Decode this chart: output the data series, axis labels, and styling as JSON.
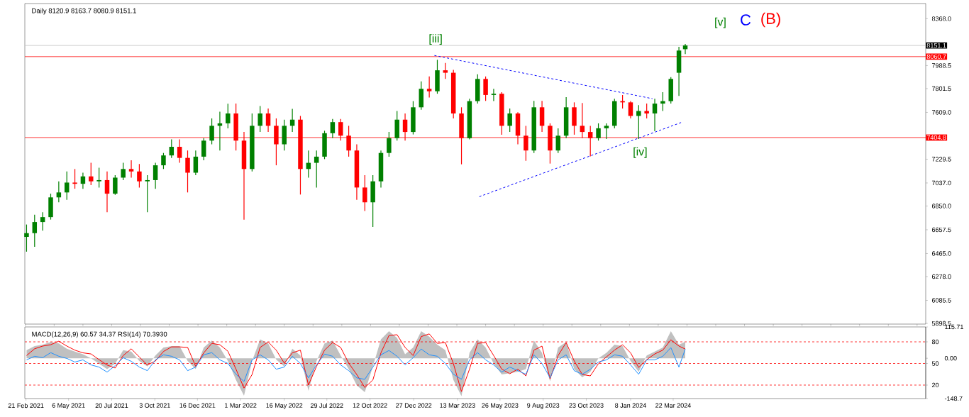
{
  "chart_data": [
    {
      "type": "candlestick",
      "title": "Daily  8120.9 8163.7 8080.9 8151.1",
      "x": [
        "2021-02-22",
        "2021-03-08",
        "2021-03-22",
        "2021-04-05",
        "2021-04-19",
        "2021-05-03",
        "2021-05-17",
        "2021-05-31",
        "2021-06-14",
        "2021-06-28",
        "2021-07-12",
        "2021-07-26",
        "2021-08-09",
        "2021-08-23",
        "2021-09-06",
        "2021-09-20",
        "2021-10-04",
        "2021-10-18",
        "2021-11-01",
        "2021-11-15",
        "2021-11-29",
        "2021-12-13",
        "2021-12-27",
        "2022-01-10",
        "2022-01-24",
        "2022-02-07",
        "2022-02-21",
        "2022-03-07",
        "2022-03-21",
        "2022-04-04",
        "2022-04-18",
        "2022-05-02",
        "2022-05-16",
        "2022-05-30",
        "2022-06-13",
        "2022-06-27",
        "2022-07-11",
        "2022-07-25",
        "2022-08-08",
        "2022-08-22",
        "2022-09-05",
        "2022-09-19",
        "2022-10-03",
        "2022-10-17",
        "2022-10-31",
        "2022-11-14",
        "2022-11-28",
        "2022-12-12",
        "2022-12-26",
        "2023-01-09",
        "2023-01-23",
        "2023-02-06",
        "2023-02-20",
        "2023-03-06",
        "2023-03-20",
        "2023-04-03",
        "2023-04-17",
        "2023-05-01",
        "2023-05-15",
        "2023-05-29",
        "2023-06-12",
        "2023-06-26",
        "2023-07-10",
        "2023-07-24",
        "2023-08-07",
        "2023-08-21",
        "2023-09-04",
        "2023-09-18",
        "2023-10-02",
        "2023-10-16",
        "2023-10-30",
        "2023-11-13",
        "2023-11-27",
        "2023-12-11",
        "2023-12-25",
        "2024-01-08",
        "2024-01-22",
        "2024-02-05",
        "2024-02-19",
        "2024-03-04",
        "2024-03-18",
        "2024-04-01",
        "2024-04-12"
      ],
      "ohlc": [
        [
          6600,
          6700,
          6480,
          6630
        ],
        [
          6630,
          6780,
          6520,
          6720
        ],
        [
          6720,
          6800,
          6650,
          6760
        ],
        [
          6760,
          6950,
          6740,
          6920
        ],
        [
          6920,
          7050,
          6880,
          6960
        ],
        [
          6960,
          7130,
          6900,
          7040
        ],
        [
          7040,
          7150,
          6990,
          7030
        ],
        [
          7030,
          7120,
          6990,
          7090
        ],
        [
          7090,
          7200,
          7020,
          7050
        ],
        [
          7050,
          7160,
          7000,
          7060
        ],
        [
          7060,
          7130,
          6800,
          6950
        ],
        [
          6950,
          7100,
          6940,
          7080
        ],
        [
          7080,
          7200,
          7060,
          7150
        ],
        [
          7150,
          7220,
          7080,
          7130
        ],
        [
          7130,
          7190,
          7000,
          7050
        ],
        [
          7050,
          7100,
          6800,
          7060
        ],
        [
          7060,
          7200,
          6990,
          7180
        ],
        [
          7180,
          7280,
          7150,
          7260
        ],
        [
          7260,
          7390,
          7240,
          7330
        ],
        [
          7330,
          7390,
          7200,
          7240
        ],
        [
          7240,
          7300,
          6960,
          7120
        ],
        [
          7120,
          7300,
          7100,
          7250
        ],
        [
          7250,
          7400,
          7220,
          7380
        ],
        [
          7380,
          7560,
          7350,
          7500
        ],
        [
          7500,
          7615,
          7300,
          7520
        ],
        [
          7520,
          7679,
          7480,
          7600
        ],
        [
          7600,
          7680,
          7300,
          7380
        ],
        [
          7380,
          7450,
          6739,
          7150
        ],
        [
          7150,
          7600,
          7130,
          7500
        ],
        [
          7500,
          7661,
          7450,
          7600
        ],
        [
          7600,
          7640,
          7450,
          7500
        ],
        [
          7500,
          7560,
          7180,
          7350
        ],
        [
          7350,
          7550,
          7300,
          7500
        ],
        [
          7500,
          7638,
          7450,
          7550
        ],
        [
          7550,
          7580,
          6943,
          7150
        ],
        [
          7150,
          7300,
          7080,
          7200
        ],
        [
          7200,
          7300,
          7000,
          7250
        ],
        [
          7250,
          7460,
          7230,
          7440
        ],
        [
          7440,
          7556,
          7400,
          7530
        ],
        [
          7530,
          7556,
          7380,
          7420
        ],
        [
          7420,
          7500,
          7250,
          7300
        ],
        [
          7300,
          7350,
          6900,
          7000
        ],
        [
          7000,
          7100,
          6809,
          6880
        ],
        [
          6880,
          7100,
          6680,
          7050
        ],
        [
          7050,
          7300,
          7000,
          7280
        ],
        [
          7280,
          7450,
          7250,
          7400
        ],
        [
          7400,
          7620,
          7380,
          7550
        ],
        [
          7550,
          7600,
          7380,
          7450
        ],
        [
          7450,
          7700,
          7430,
          7650
        ],
        [
          7650,
          7860,
          7630,
          7800
        ],
        [
          7800,
          7900,
          7730,
          7780
        ],
        [
          7780,
          8035,
          7760,
          7950
        ],
        [
          7950,
          8010,
          7880,
          7930
        ],
        [
          7930,
          7953,
          7560,
          7600
        ],
        [
          7600,
          7650,
          7188,
          7400
        ],
        [
          7400,
          7720,
          7390,
          7700
        ],
        [
          7700,
          7918,
          7680,
          7880
        ],
        [
          7880,
          7900,
          7702,
          7750
        ],
        [
          7750,
          7800,
          7700,
          7760
        ],
        [
          7760,
          7772,
          7428,
          7500
        ],
        [
          7500,
          7640,
          7450,
          7600
        ],
        [
          7600,
          7610,
          7350,
          7420
        ],
        [
          7420,
          7500,
          7217,
          7300
        ],
        [
          7300,
          7702,
          7280,
          7650
        ],
        [
          7650,
          7702,
          7450,
          7500
        ],
        [
          7500,
          7520,
          7194,
          7300
        ],
        [
          7300,
          7480,
          7280,
          7420
        ],
        [
          7420,
          7732,
          7400,
          7650
        ],
        [
          7650,
          7690,
          7428,
          7500
        ],
        [
          7500,
          7685,
          7400,
          7450
        ],
        [
          7450,
          7500,
          7253,
          7400
        ],
        [
          7400,
          7520,
          7380,
          7480
        ],
        [
          7480,
          7520,
          7393,
          7500
        ],
        [
          7500,
          7720,
          7480,
          7700
        ],
        [
          7700,
          7749,
          7640,
          7690
        ],
        [
          7690,
          7700,
          7560,
          7580
        ],
        [
          7580,
          7668,
          7393,
          7620
        ],
        [
          7620,
          7680,
          7560,
          7600
        ],
        [
          7600,
          7720,
          7457,
          7680
        ],
        [
          7680,
          7772,
          7620,
          7700
        ],
        [
          7700,
          7895,
          7680,
          7880
        ],
        [
          7930,
          8140,
          7743,
          8110
        ],
        [
          8120.9,
          8163.7,
          8080.9,
          8151.1
        ]
      ],
      "colors": [
        "#008000",
        "#008000",
        "#008000",
        "#008000",
        "#008000",
        "#008000",
        "#ff0000",
        "#008000",
        "#ff0000",
        "#008000",
        "#ff0000",
        "#008000",
        "#008000",
        "#ff0000",
        "#ff0000",
        "#008000",
        "#008000",
        "#008000",
        "#008000",
        "#ff0000",
        "#ff0000",
        "#008000",
        "#008000",
        "#008000",
        "#008000",
        "#008000",
        "#ff0000",
        "#ff0000",
        "#008000",
        "#008000",
        "#ff0000",
        "#ff0000",
        "#008000",
        "#008000",
        "#ff0000",
        "#008000",
        "#008000",
        "#008000",
        "#008000",
        "#ff0000",
        "#ff0000",
        "#ff0000",
        "#ff0000",
        "#008000",
        "#008000",
        "#008000",
        "#008000",
        "#ff0000",
        "#008000",
        "#008000",
        "#ff0000",
        "#008000",
        "#ff0000",
        "#ff0000",
        "#ff0000",
        "#008000",
        "#008000",
        "#ff0000",
        "#008000",
        "#ff0000",
        "#008000",
        "#ff0000",
        "#ff0000",
        "#008000",
        "#ff0000",
        "#ff0000",
        "#008000",
        "#008000",
        "#ff0000",
        "#ff0000",
        "#ff0000",
        "#008000",
        "#008000",
        "#008000",
        "#ff0000",
        "#ff0000",
        "#008000",
        "#ff0000",
        "#008000",
        "#008000",
        "#008000",
        "#008000",
        "#008000"
      ],
      "series": [
        {
          "type": "line",
          "color": "#0000ff",
          "line_style": "dashed",
          "x": [
            "2023-02-01",
            "2024-02-15"
          ],
          "values": [
            8070,
            7720
          ]
        },
        {
          "type": "line",
          "color": "#0000ff",
          "line_style": "dashed",
          "x": [
            "2023-04-20",
            "2024-04-05"
          ],
          "values": [
            6926,
            7527
          ]
        }
      ],
      "xlim": [
        "2021-02-19",
        "2025-06-04"
      ],
      "ylim": [
        5893,
        8491
      ],
      "yticks": [
        {
          "value": 8368,
          "label": "8368.0"
        },
        {
          "value": 7988.5,
          "label": "7988.5"
        },
        {
          "value": 7801.5,
          "label": "7801.5"
        },
        {
          "value": 7609,
          "label": "7609.0"
        },
        {
          "value": 7229.5,
          "label": "7229.5"
        },
        {
          "value": 7037,
          "label": "7037.0"
        },
        {
          "value": 6850,
          "label": "6850.0"
        },
        {
          "value": 6657.5,
          "label": "6657.5"
        },
        {
          "value": 6465,
          "label": "6465.0"
        },
        {
          "value": 6278,
          "label": "6278.0"
        },
        {
          "value": 6085.5,
          "label": "6085.5"
        },
        {
          "value": 5898.5,
          "label": "5898.5"
        }
      ],
      "tick_labels": "y",
      "ref_lines": [
        {
          "axis": "y",
          "value": 8151.1,
          "label": "8151.1",
          "color": "#c0c0c0"
        },
        {
          "axis": "y",
          "value": 8060.7,
          "label": "8060.7",
          "color": "#ff0000"
        },
        {
          "axis": "y",
          "value": 7404.8,
          "label": "7404.8",
          "color": "#ff0000"
        }
      ],
      "annotations": [
        "[iii]",
        "[iv]",
        "[v]",
        "C",
        "(B)"
      ]
    },
    {
      "type": "line",
      "title": "MACD(12,26,9) 60.57 34.37  RSI(14) 70.3930",
      "x": [
        "2021-02-22",
        "2021-03-08",
        "2021-03-22",
        "2021-04-05",
        "2021-04-19",
        "2021-05-03",
        "2021-05-17",
        "2021-05-31",
        "2021-06-14",
        "2021-06-28",
        "2021-07-12",
        "2021-07-26",
        "2021-08-09",
        "2021-08-23",
        "2021-09-06",
        "2021-09-20",
        "2021-10-04",
        "2021-10-18",
        "2021-11-01",
        "2021-11-15",
        "2021-11-29",
        "2021-12-13",
        "2021-12-27",
        "2022-01-10",
        "2022-01-24",
        "2022-02-07",
        "2022-02-21",
        "2022-03-07",
        "2022-03-21",
        "2022-04-04",
        "2022-04-18",
        "2022-05-02",
        "2022-05-16",
        "2022-05-30",
        "2022-06-13",
        "2022-06-27",
        "2022-07-11",
        "2022-07-25",
        "2022-08-08",
        "2022-08-22",
        "2022-09-05",
        "2022-09-19",
        "2022-10-03",
        "2022-10-17",
        "2022-10-31",
        "2022-11-14",
        "2022-11-28",
        "2022-12-12",
        "2022-12-26",
        "2023-01-09",
        "2023-01-23",
        "2023-02-06",
        "2023-02-20",
        "2023-03-06",
        "2023-03-20",
        "2023-04-03",
        "2023-04-17",
        "2023-05-01",
        "2023-05-15",
        "2023-05-29",
        "2023-06-12",
        "2023-06-26",
        "2023-07-10",
        "2023-07-24",
        "2023-08-07",
        "2023-08-21",
        "2023-09-04",
        "2023-09-18",
        "2023-10-02",
        "2023-10-16",
        "2023-10-30",
        "2023-11-13",
        "2023-11-27",
        "2023-12-11",
        "2023-12-25",
        "2024-01-08",
        "2024-01-22",
        "2024-02-05",
        "2024-02-19",
        "2024-03-04",
        "2024-03-18",
        "2024-04-01",
        "2024-04-12"
      ],
      "series": [
        {
          "type": "area",
          "axis": "y2",
          "color": "#c0c0c0",
          "values": [
            30,
            45,
            50,
            60,
            55,
            35,
            25,
            15,
            0,
            -20,
            -40,
            -20,
            30,
            25,
            -10,
            -30,
            10,
            40,
            45,
            45,
            -10,
            -40,
            40,
            65,
            40,
            -10,
            -80,
            -138,
            -10,
            70,
            55,
            -5,
            -30,
            35,
            10,
            -120,
            -10,
            55,
            65,
            10,
            -40,
            -100,
            -125,
            -30,
            70,
            100,
            75,
            15,
            40,
            100,
            80,
            50,
            30,
            -80,
            -140,
            20,
            70,
            40,
            -20,
            -60,
            -55,
            -50,
            -40,
            65,
            20,
            -85,
            40,
            60,
            -40,
            -70,
            -50,
            0,
            20,
            50,
            45,
            -10,
            -50,
            10,
            25,
            40,
            100,
            50,
            61
          ]
        },
        {
          "type": "line",
          "axis": "y2",
          "color": "#ff0000",
          "values": [
            10,
            35,
            45,
            50,
            63,
            45,
            30,
            20,
            16,
            -5,
            -25,
            -36,
            10,
            35,
            5,
            -25,
            -10,
            25,
            42,
            42,
            40,
            -30,
            20,
            55,
            50,
            26,
            -40,
            -110,
            -60,
            40,
            60,
            30,
            -18,
            20,
            30,
            -99,
            -30,
            30,
            58,
            40,
            -18,
            -60,
            -108,
            -80,
            20,
            84,
            87,
            40,
            10,
            80,
            90,
            55,
            58,
            -20,
            -123,
            -40,
            55,
            58,
            10,
            -40,
            -57,
            -40,
            -65,
            30,
            45,
            -76,
            10,
            58,
            -10,
            -60,
            -65,
            -20,
            5,
            30,
            50,
            20,
            -34,
            -5,
            16,
            30,
            68,
            45,
            34
          ]
        },
        {
          "type": "line",
          "color": "#1e90ff",
          "values": [
            55,
            60,
            58,
            65,
            60,
            57,
            52,
            55,
            48,
            45,
            38,
            47,
            58,
            53,
            45,
            40,
            55,
            62,
            60,
            55,
            40,
            45,
            62,
            65,
            55,
            50,
            35,
            25,
            55,
            62,
            55,
            42,
            45,
            60,
            50,
            30,
            48,
            63,
            60,
            48,
            40,
            30,
            28,
            45,
            62,
            68,
            60,
            48,
            58,
            70,
            62,
            60,
            50,
            35,
            28,
            55,
            65,
            55,
            48,
            38,
            45,
            40,
            35,
            62,
            50,
            30,
            55,
            62,
            40,
            35,
            42,
            52,
            55,
            62,
            60,
            48,
            35,
            55,
            55,
            60,
            72,
            45,
            70
          ]
        }
      ],
      "xlim": [
        "2021-02-19",
        "2025-06-04"
      ],
      "xticks": [
        {
          "value": "2021-02-21",
          "label": "21 Feb 2021"
        },
        {
          "value": "2021-05-06",
          "label": "6 May 2021"
        },
        {
          "value": "2021-07-20",
          "label": "20 Jul 2021"
        },
        {
          "value": "2021-10-03",
          "label": "3 Oct 2021"
        },
        {
          "value": "2021-12-16",
          "label": "16 Dec 2021"
        },
        {
          "value": "2022-03-01",
          "label": "1 Mar 2022"
        },
        {
          "value": "2022-05-16",
          "label": "16 May 2022"
        },
        {
          "value": "2022-07-29",
          "label": "29 Jul 2022"
        },
        {
          "value": "2022-10-12",
          "label": "12 Oct 2022"
        },
        {
          "value": "2022-12-27",
          "label": "27 Dec 2022"
        },
        {
          "value": "2023-03-13",
          "label": "13 Mar 2023"
        },
        {
          "value": "2023-05-26",
          "label": "26 May 2023"
        },
        {
          "value": "2023-08-09",
          "label": "9 Aug 2023"
        },
        {
          "value": "2023-10-23",
          "label": "23 Oct 2023"
        },
        {
          "value": "2024-01-08",
          "label": "8 Jan 2024"
        },
        {
          "value": "2024-03-22",
          "label": "22 Mar 2024"
        }
      ],
      "ylim": [
        1.3,
        100.7
      ],
      "yticks": [
        80,
        50,
        20
      ],
      "y2lim": [
        -148.7,
        115.71
      ],
      "y2ticks": [
        115.71,
        {
          "value": 0,
          "label": "0.00"
        },
        -148.7
      ],
      "ref_lines": [
        {
          "axis": "y",
          "value": 80,
          "color": "#ff0000",
          "line_style": "dashed"
        },
        {
          "axis": "y",
          "value": 50,
          "color": "#ff0000",
          "line_style": "dashed"
        },
        {
          "axis": "y",
          "value": 20,
          "color": "#ff0000",
          "line_style": "dashed"
        }
      ]
    }
  ]
}
